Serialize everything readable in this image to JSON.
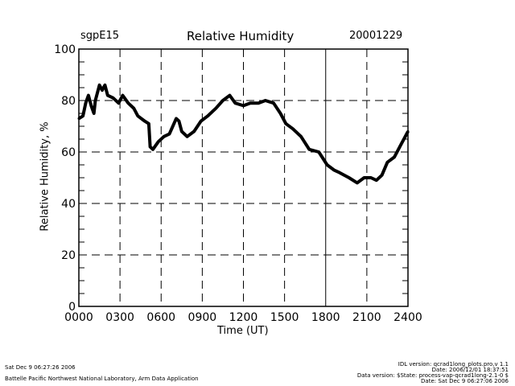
{
  "chart_data": {
    "type": "line",
    "title": "Relative Humidity",
    "site": "sgpE15",
    "date": "20001229",
    "xlabel": "Time (UT)",
    "ylabel": "Relative Humidity, %",
    "xlim": [
      0,
      24
    ],
    "ylim": [
      0,
      100
    ],
    "xticks": [
      0,
      3,
      6,
      9,
      12,
      15,
      18,
      21,
      24
    ],
    "xtick_labels": [
      "0000",
      "0300",
      "0600",
      "0900",
      "1200",
      "1500",
      "1800",
      "2100",
      "2400"
    ],
    "yticks": [
      0,
      20,
      40,
      60,
      80,
      100
    ],
    "ytick_labels": [
      "0",
      "20",
      "40",
      "60",
      "80",
      "100"
    ],
    "grid": true,
    "series": [
      {
        "name": "Relative Humidity",
        "x": [
          0.0,
          0.3,
          0.5,
          0.7,
          0.9,
          1.1,
          1.2,
          1.5,
          1.7,
          1.9,
          2.1,
          2.5,
          2.9,
          3.2,
          3.6,
          4.0,
          4.3,
          4.8,
          5.1,
          5.2,
          5.4,
          5.8,
          6.2,
          6.6,
          7.1,
          7.3,
          7.5,
          7.9,
          8.4,
          8.9,
          9.4,
          10.0,
          10.5,
          11.0,
          11.4,
          12.0,
          12.5,
          13.1,
          13.6,
          14.2,
          14.7,
          15.1,
          15.6,
          16.2,
          16.8,
          17.5,
          18.1,
          18.6,
          19.0,
          19.7,
          20.3,
          20.8,
          21.3,
          21.7,
          22.1,
          22.5,
          23.0,
          23.4,
          23.8,
          24.0
        ],
        "y": [
          73,
          74,
          79,
          82,
          78,
          75,
          80,
          86,
          84,
          86,
          82,
          81,
          79,
          82,
          79,
          77,
          74,
          72,
          71,
          62,
          61,
          64,
          66,
          67,
          73,
          72,
          68,
          66,
          68,
          72,
          74,
          77,
          80,
          82,
          79,
          78,
          79,
          79,
          80,
          79,
          75,
          71,
          69,
          66,
          61,
          60,
          55,
          53,
          52,
          50,
          48,
          50,
          50,
          49,
          51,
          56,
          58,
          62,
          66,
          68
        ]
      }
    ]
  },
  "footer": {
    "timestamp": "Sat Dec  9 06:27:26 2006",
    "org": "Battelle Pacific Northwest National Laboratory, Arm Data Application",
    "idl_version": "IDL version: qcrad1long_plots.pro,v 1.1",
    "idl_date": "Date: 2006/12/01 18:37:51",
    "data_version": "Data version: $State: process-vap-qcrad1long-2.1-0 $",
    "data_date": "Date: Sat Dec  9 06:27:06 2006"
  }
}
